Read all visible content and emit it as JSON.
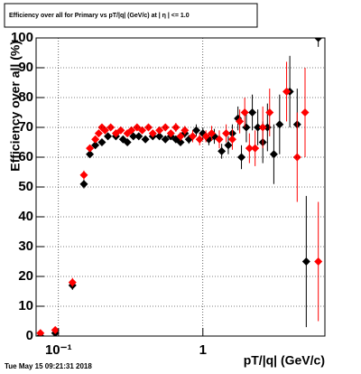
{
  "chart_data": {
    "type": "scatter",
    "title": "Efficiency over all for Primary vs pT/|q| (GeV/c) at | η | <= 1.0",
    "y_label": "Efficiency over all (%)",
    "x_label": "pT/|q| (GeV/c)",
    "footer": "Tue May 15 09:21:31 2018",
    "log_x": true,
    "grid": true,
    "xlim": [
      0.07,
      7
    ],
    "xticks": [
      {
        "value": 0.1,
        "label": "10⁻¹"
      },
      1
    ],
    "ylim": [
      0,
      100
    ],
    "yticks": [
      0,
      10,
      20,
      30,
      40,
      50,
      60,
      70,
      80,
      90,
      100
    ],
    "series": [
      {
        "color": "#000000",
        "x": [
          0.075,
          0.095,
          0.125,
          0.15,
          0.165,
          0.18,
          0.2,
          0.22,
          0.25,
          0.28,
          0.3,
          0.33,
          0.36,
          0.4,
          0.45,
          0.5,
          0.55,
          0.6,
          0.65,
          0.7,
          0.75,
          0.8,
          0.9,
          1.0,
          1.1,
          1.2,
          1.35,
          1.5,
          1.6,
          1.75,
          1.85,
          2.0,
          2.2,
          2.4,
          2.6,
          2.8,
          3.1,
          3.4,
          4.0,
          4.5,
          5.2,
          6.3
        ],
        "values": [
          0,
          1,
          17,
          51,
          61,
          64,
          65,
          67,
          67,
          66,
          65,
          67,
          67,
          66,
          67,
          67,
          66,
          67,
          66,
          65,
          68,
          66,
          69,
          68,
          66,
          67,
          62,
          64,
          68,
          73,
          60,
          70,
          75,
          70,
          65,
          70,
          61,
          71,
          82,
          71,
          25,
          100
        ],
        "errors": [
          0.5,
          0.8,
          1.5,
          1.5,
          1.2,
          1,
          1,
          1,
          1,
          1,
          1,
          1,
          1,
          1,
          1,
          1,
          1,
          1,
          1.2,
          1.2,
          1.5,
          1.5,
          2,
          2,
          2,
          2.5,
          2.5,
          3,
          3,
          4,
          4,
          5,
          6,
          6,
          7,
          8,
          10,
          10,
          12,
          12,
          22,
          3
        ]
      },
      {
        "color": "#ff0000",
        "x": [
          0.075,
          0.095,
          0.125,
          0.15,
          0.165,
          0.18,
          0.19,
          0.2,
          0.21,
          0.23,
          0.25,
          0.27,
          0.3,
          0.32,
          0.35,
          0.38,
          0.42,
          0.45,
          0.5,
          0.55,
          0.6,
          0.65,
          0.7,
          0.75,
          0.85,
          0.95,
          1.05,
          1.15,
          1.3,
          1.45,
          1.6,
          1.8,
          1.95,
          2.1,
          2.3,
          2.6,
          2.9,
          3.8,
          4.5,
          5.1,
          6.3
        ],
        "values": [
          1,
          2,
          18,
          54,
          63,
          66,
          68,
          70,
          69,
          70,
          68,
          69,
          68,
          69,
          70,
          69,
          70,
          68,
          69,
          70,
          68,
          70,
          67,
          69,
          67,
          66,
          67,
          68,
          66,
          68,
          66,
          72,
          75,
          63,
          63,
          70,
          75,
          82,
          60,
          75,
          25
        ],
        "errors": [
          0.5,
          0.8,
          1.5,
          1.5,
          1.2,
          1,
          1,
          1,
          1,
          1,
          1,
          1,
          1,
          1,
          1,
          1,
          1,
          1,
          1,
          1.2,
          1.2,
          1.5,
          1.5,
          1.5,
          2,
          2,
          2,
          2.5,
          3,
          3,
          3.5,
          4,
          5,
          5,
          6,
          7,
          8,
          10,
          15,
          15,
          20
        ]
      }
    ]
  }
}
